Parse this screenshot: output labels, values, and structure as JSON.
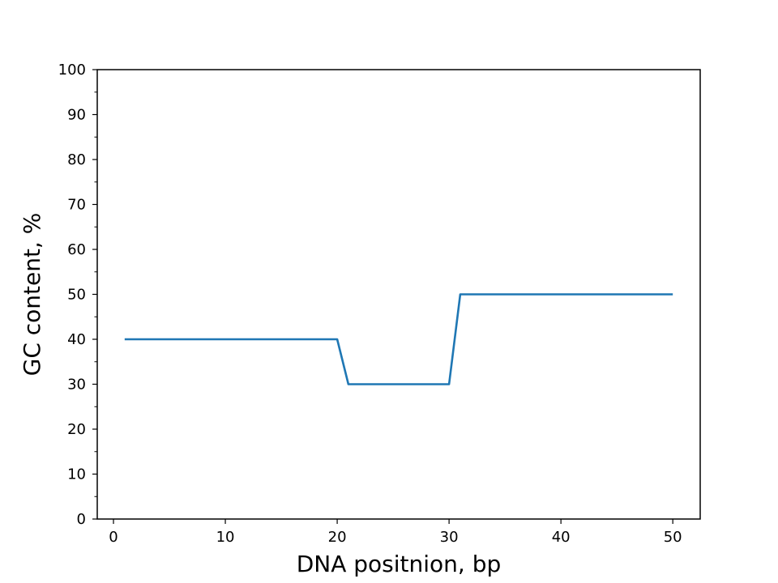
{
  "chart_data": {
    "type": "line",
    "title": "",
    "xlabel": "DNA positnion, bp",
    "ylabel": "GC content, %",
    "xlim": [
      -1.45,
      52.45
    ],
    "ylim": [
      0,
      100
    ],
    "x_ticks": [
      0,
      10,
      20,
      30,
      40,
      50
    ],
    "y_ticks": [
      0,
      10,
      20,
      30,
      40,
      50,
      60,
      70,
      80,
      90,
      100
    ],
    "y_minor_step": 5,
    "grid": false,
    "legend": "none",
    "series": [
      {
        "color": "#1f77b4",
        "x": [
          1,
          20,
          21,
          30,
          31,
          50
        ],
        "y": [
          40,
          40,
          30,
          30,
          50,
          50
        ]
      }
    ]
  }
}
